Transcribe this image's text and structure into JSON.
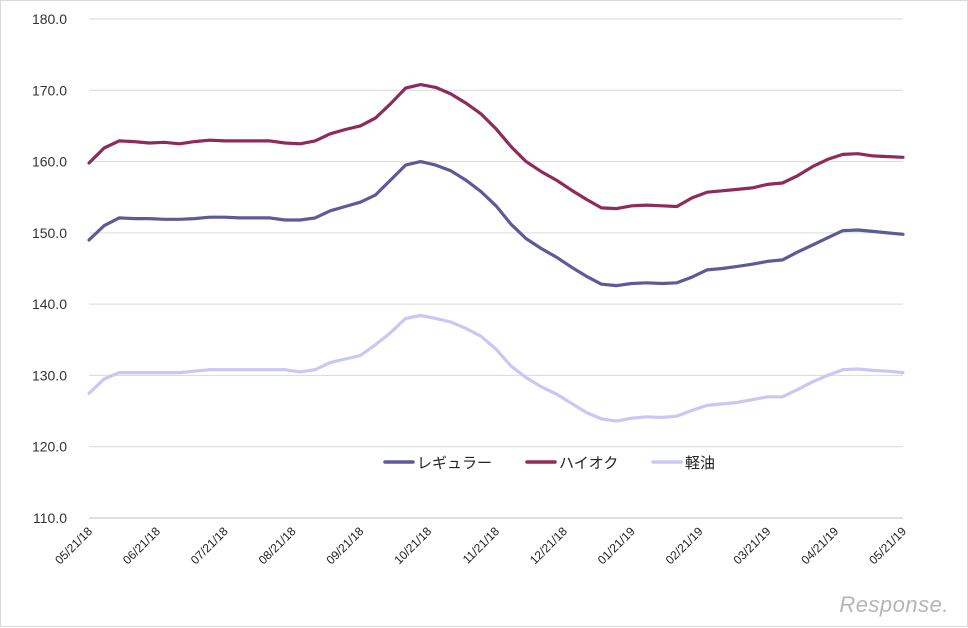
{
  "chart_data": {
    "type": "line",
    "title": "",
    "xlabel": "",
    "ylabel": "",
    "ylim": [
      110,
      180
    ],
    "yticks": [
      "110.0",
      "120.0",
      "130.0",
      "140.0",
      "150.0",
      "160.0",
      "170.0",
      "180.0"
    ],
    "grid": true,
    "legend_position": "center-bottom",
    "x_tick_labels": [
      "05/21/18",
      "06/21/18",
      "07/21/18",
      "08/21/18",
      "09/21/18",
      "10/21/18",
      "11/21/18",
      "12/21/18",
      "01/21/19",
      "02/21/19",
      "03/21/19",
      "04/21/19",
      "05/21/19"
    ],
    "n_points": 55,
    "series": [
      {
        "name": "レギュラー",
        "color": "#5b5b99",
        "values": [
          149.0,
          151.0,
          152.1,
          152.0,
          152.0,
          151.9,
          151.9,
          152.0,
          152.2,
          152.2,
          152.1,
          152.1,
          152.1,
          151.8,
          151.8,
          152.1,
          153.1,
          153.7,
          154.3,
          155.3,
          157.4,
          159.5,
          160.0,
          159.5,
          158.7,
          157.4,
          155.8,
          153.8,
          151.2,
          149.2,
          147.8,
          146.6,
          145.2,
          143.9,
          142.8,
          142.6,
          142.9,
          143.0,
          142.9,
          143.0,
          143.8,
          144.8,
          145.0,
          145.3,
          145.6,
          146.0,
          146.2,
          147.3,
          148.3,
          149.3,
          150.3,
          150.4,
          150.2,
          150.0,
          149.8
        ]
      },
      {
        "name": "ハイオク",
        "color": "#8e2a5c",
        "values": [
          159.8,
          161.9,
          162.9,
          162.8,
          162.6,
          162.7,
          162.5,
          162.8,
          163.0,
          162.9,
          162.9,
          162.9,
          162.9,
          162.6,
          162.5,
          162.9,
          163.9,
          164.5,
          165.0,
          166.1,
          168.1,
          170.3,
          170.8,
          170.4,
          169.5,
          168.2,
          166.7,
          164.6,
          162.1,
          160.0,
          158.6,
          157.4,
          156.0,
          154.7,
          153.5,
          153.4,
          153.8,
          153.9,
          153.8,
          153.7,
          154.9,
          155.7,
          155.9,
          156.1,
          156.3,
          156.8,
          157.0,
          158.0,
          159.3,
          160.3,
          161.0,
          161.1,
          160.8,
          160.7,
          160.6
        ]
      },
      {
        "name": "軽油",
        "color": "#c8c8f2",
        "values": [
          127.5,
          129.5,
          130.4,
          130.4,
          130.4,
          130.4,
          130.4,
          130.6,
          130.8,
          130.8,
          130.8,
          130.8,
          130.8,
          130.8,
          130.5,
          130.8,
          131.8,
          132.3,
          132.8,
          134.3,
          136.0,
          138.0,
          138.4,
          138.0,
          137.5,
          136.6,
          135.5,
          133.7,
          131.3,
          129.7,
          128.4,
          127.4,
          126.1,
          124.8,
          123.9,
          123.6,
          124.0,
          124.2,
          124.1,
          124.3,
          125.1,
          125.8,
          126.0,
          126.2,
          126.6,
          127.0,
          127.0,
          128.0,
          129.1,
          130.0,
          130.8,
          130.9,
          130.7,
          130.6,
          130.4
        ]
      }
    ]
  },
  "watermark": "Response."
}
